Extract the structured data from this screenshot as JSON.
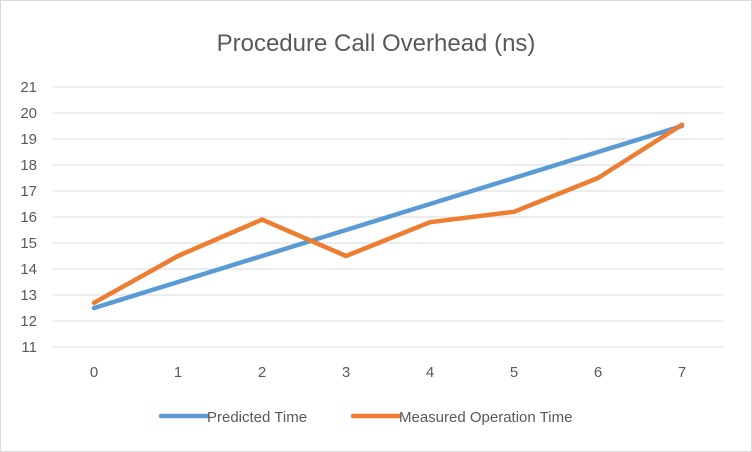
{
  "chart_data": {
    "type": "line",
    "title": "Procedure Call Overhead (ns)",
    "xlabel": "",
    "ylabel": "",
    "x": [
      0,
      1,
      2,
      3,
      4,
      5,
      6,
      7
    ],
    "ylim": [
      11,
      21
    ],
    "yticks": [
      11,
      12,
      13,
      14,
      15,
      16,
      17,
      18,
      19,
      20,
      21
    ],
    "grid": true,
    "legend_position": "bottom",
    "series": [
      {
        "name": "Predicted Time",
        "color": "#5b9bd5",
        "values": [
          12.5,
          13.5,
          14.5,
          15.5,
          16.5,
          17.5,
          18.5,
          19.5
        ]
      },
      {
        "name": "Measured Operation Time",
        "color": "#ed7d31",
        "values": [
          12.7,
          14.5,
          15.9,
          14.5,
          15.8,
          16.2,
          17.5,
          19.55
        ]
      }
    ]
  }
}
